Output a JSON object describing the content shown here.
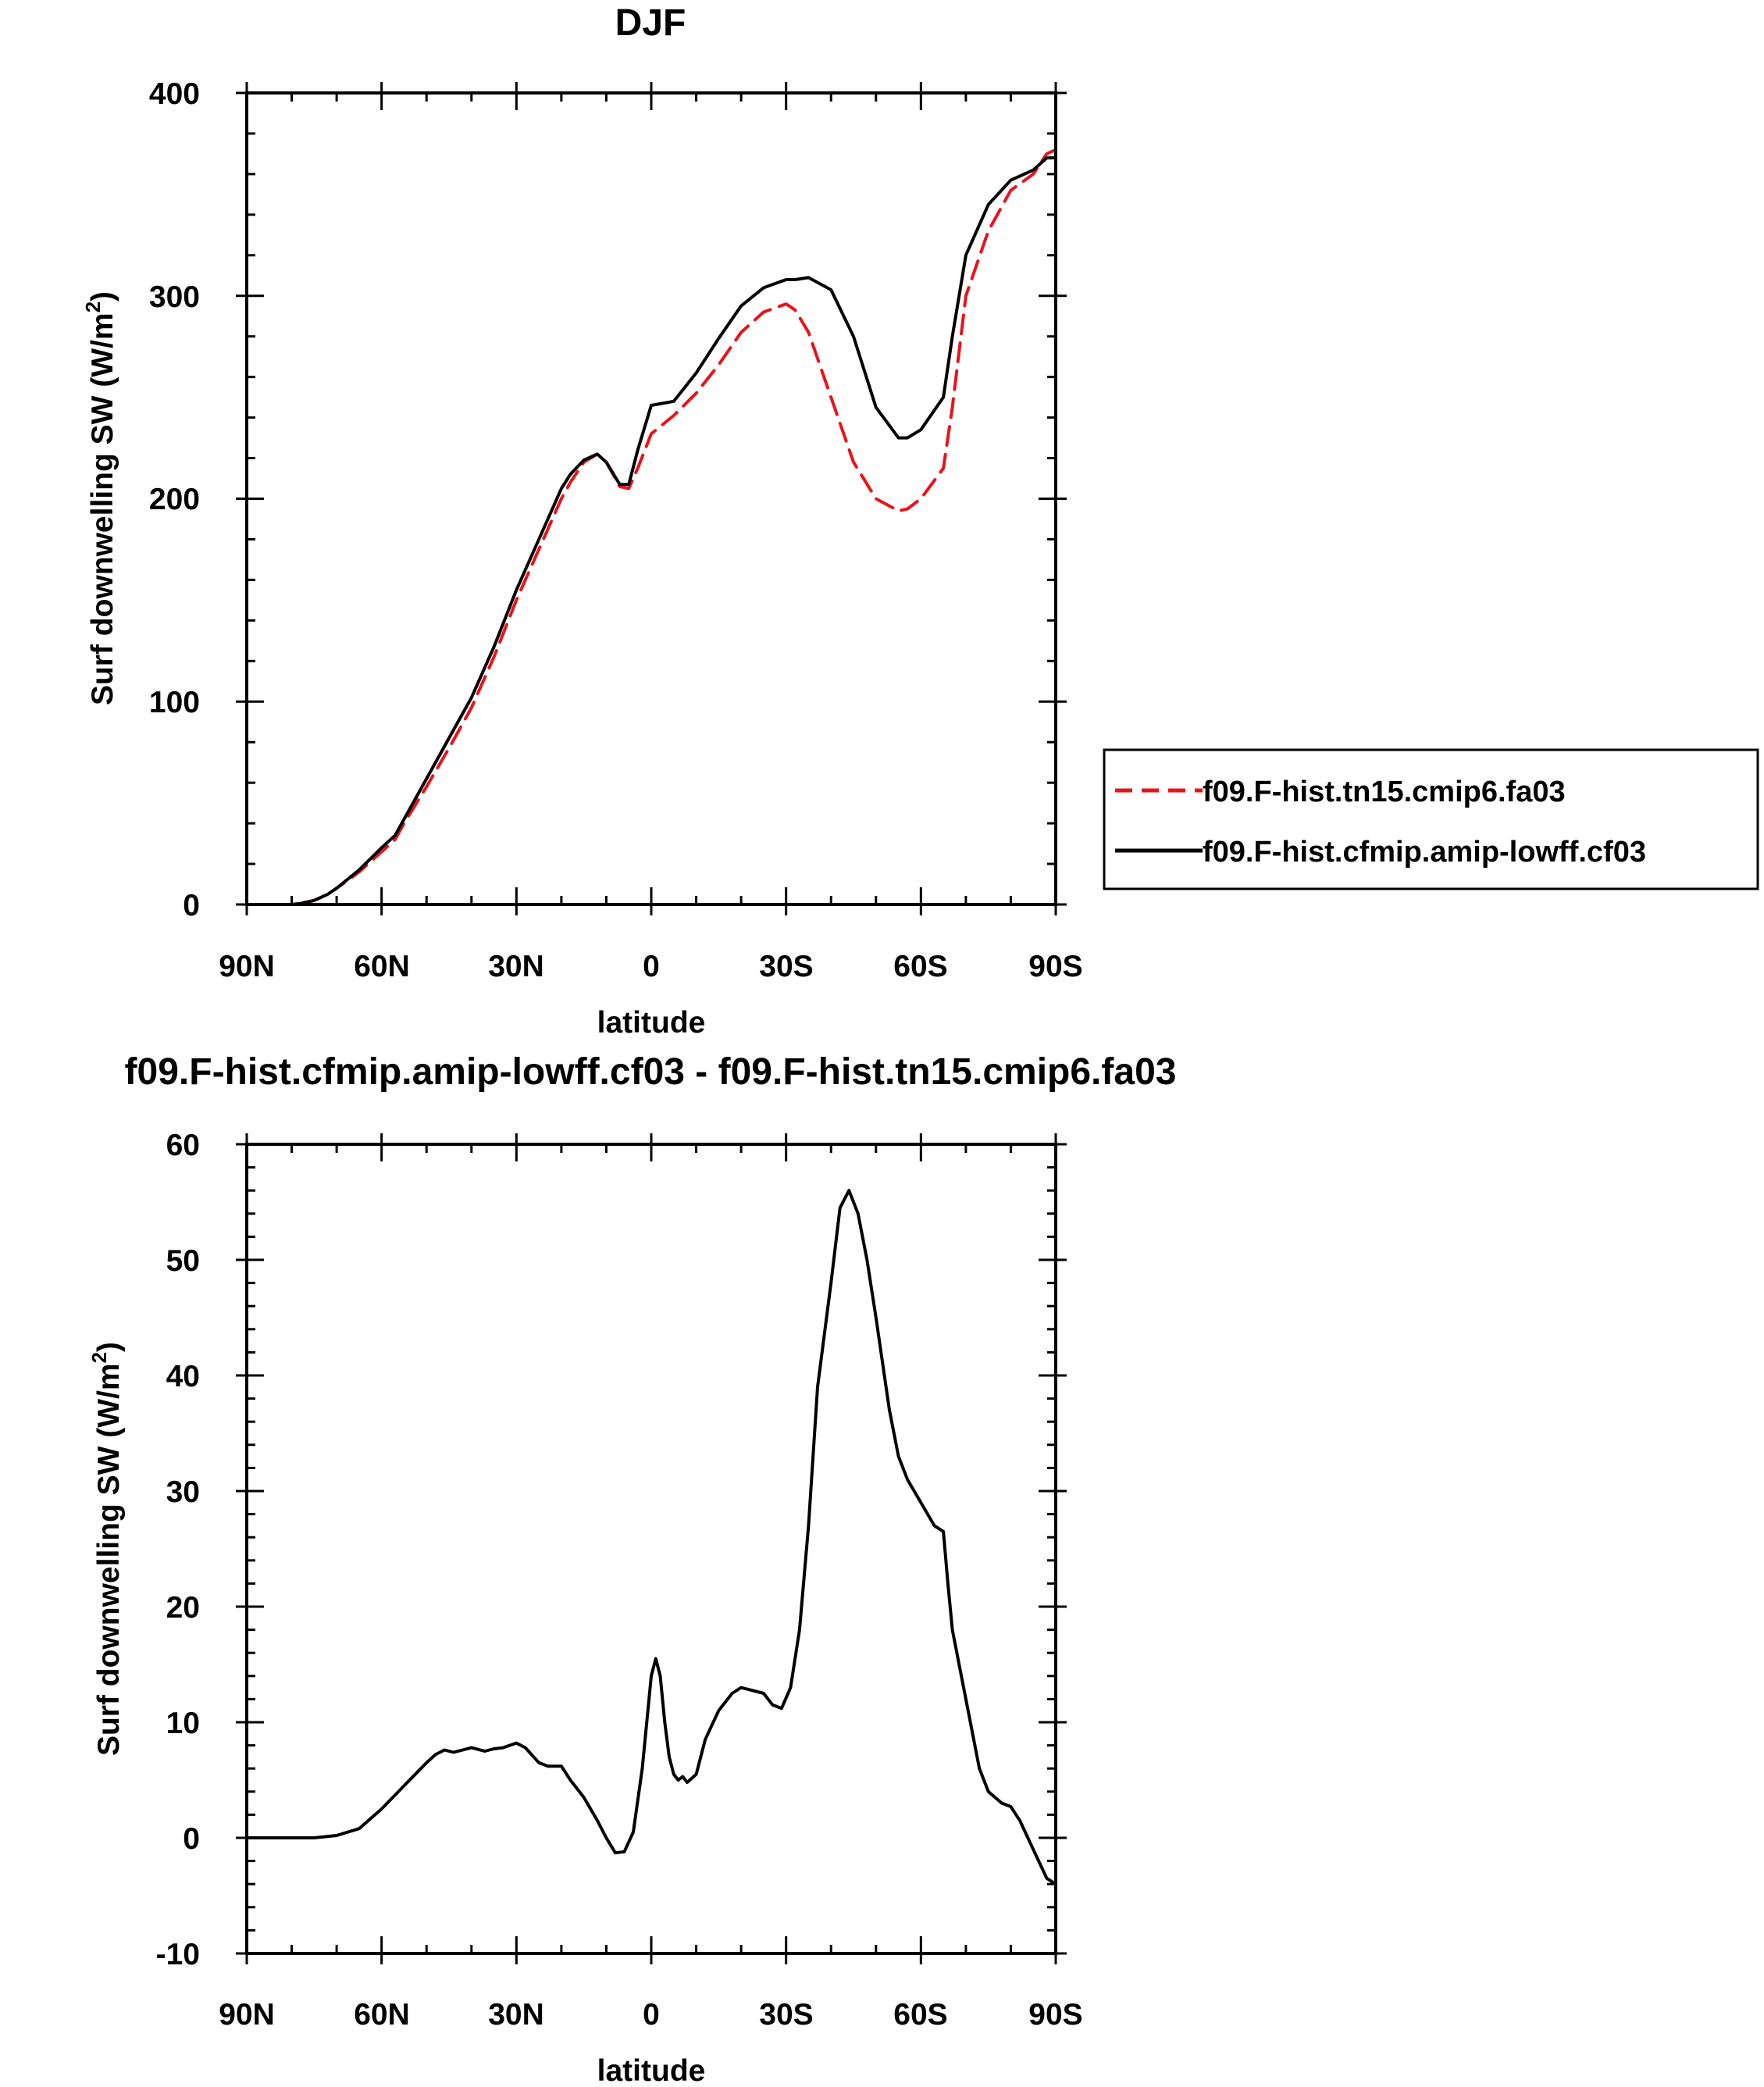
{
  "chart_data": [
    {
      "type": "line",
      "title": "DJF",
      "xlabel": "latitude",
      "ylabel": "Surf downwelling SW (W/m",
      "ylabel_sup": "2",
      "ylabel_close": ")",
      "xlim": [
        -90,
        90
      ],
      "ylim": [
        0,
        400
      ],
      "xticks": [
        -90,
        -60,
        -30,
        0,
        30,
        60,
        90
      ],
      "xtick_labels": [
        "90N",
        "60N",
        "30N",
        "0",
        "30S",
        "60S",
        "90S"
      ],
      "yticks": [
        0,
        100,
        200,
        300,
        400
      ],
      "ytick_labels": [
        "0",
        "100",
        "200",
        "300",
        "400"
      ],
      "grid": false,
      "legend": "right",
      "series": [
        {
          "name": "f09.F-hist.tn15.cmip6.fa03",
          "color": "#e8141b",
          "dash": "dashed",
          "x": [
            -90,
            -80,
            -78,
            -75,
            -72,
            -70,
            -65,
            -60,
            -57,
            -55,
            -50,
            -45,
            -40,
            -35,
            -30,
            -25,
            -20,
            -18,
            -15,
            -12,
            -10,
            -7,
            -5,
            -3,
            0,
            5,
            10,
            15,
            20,
            25,
            30,
            32,
            35,
            40,
            45,
            50,
            55,
            57,
            60,
            65,
            67,
            70,
            75,
            80,
            85,
            88,
            90
          ],
          "y": [
            0,
            0,
            0.5,
            2,
            5,
            8,
            16,
            26,
            32,
            40,
            58,
            77,
            97,
            122,
            150,
            175,
            200,
            208,
            218,
            222,
            218,
            206,
            205,
            215,
            232,
            241,
            252,
            266,
            282,
            292,
            296,
            293,
            282,
            250,
            218,
            200,
            194,
            195,
            200,
            215,
            245,
            300,
            332,
            352,
            360,
            370,
            372
          ]
        },
        {
          "name": "f09.F-hist.cfmip.amip-lowff.cf03",
          "color": "#000000",
          "dash": "solid",
          "x": [
            -90,
            -80,
            -78,
            -75,
            -72,
            -70,
            -65,
            -60,
            -57,
            -55,
            -50,
            -45,
            -40,
            -35,
            -30,
            -25,
            -20,
            -18,
            -15,
            -12,
            -10,
            -7,
            -5,
            -3,
            0,
            5,
            10,
            15,
            20,
            25,
            30,
            32,
            35,
            40,
            45,
            50,
            55,
            57,
            60,
            65,
            67,
            70,
            75,
            80,
            85,
            88,
            90
          ],
          "y": [
            0,
            0,
            0.5,
            2,
            5,
            8,
            17,
            28,
            34,
            42,
            62,
            82,
            102,
            127,
            155,
            180,
            205,
            212,
            219,
            222,
            218,
            207,
            207,
            224,
            246,
            248,
            262,
            279,
            295,
            304,
            308,
            308,
            309,
            303,
            280,
            245,
            230,
            230,
            234,
            250,
            280,
            320,
            345,
            357,
            362,
            368,
            368
          ]
        }
      ]
    },
    {
      "type": "line",
      "title": "f09.F-hist.cfmip.amip-lowff.cf03 - f09.F-hist.tn15.cmip6.fa03",
      "xlabel": "latitude",
      "ylabel": "Surf downwelling SW (W/m",
      "ylabel_sup": "2",
      "ylabel_close": ")",
      "xlim": [
        -90,
        90
      ],
      "ylim": [
        -10,
        60
      ],
      "xticks": [
        -90,
        -60,
        -30,
        0,
        30,
        60,
        90
      ],
      "xtick_labels": [
        "90N",
        "60N",
        "30N",
        "0",
        "30S",
        "60S",
        "90S"
      ],
      "yticks": [
        -10,
        0,
        10,
        20,
        30,
        40,
        50,
        60
      ],
      "ytick_labels": [
        "-10",
        "0",
        "10",
        "20",
        "30",
        "40",
        "50",
        "60"
      ],
      "grid": false,
      "series": [
        {
          "color": "#000000",
          "dash": "solid",
          "x": [
            -90,
            -75,
            -70,
            -65,
            -60,
            -55,
            -50,
            -48,
            -46,
            -44,
            -40,
            -37,
            -35,
            -33,
            -30,
            -28,
            -25,
            -23,
            -20,
            -18,
            -15,
            -12,
            -10,
            -8,
            -6,
            -4,
            -2,
            0,
            1,
            2,
            3,
            4,
            5,
            6,
            7,
            8,
            10,
            12,
            15,
            18,
            20,
            22,
            25,
            27,
            29,
            31,
            33,
            35,
            37,
            40,
            42,
            44,
            46,
            48,
            50,
            53,
            55,
            57,
            60,
            63,
            65,
            66,
            67,
            70,
            73,
            75,
            78,
            80,
            82,
            85,
            88,
            90
          ],
          "y": [
            0,
            0,
            0.2,
            0.8,
            2.5,
            4.5,
            6.5,
            7.2,
            7.6,
            7.4,
            7.8,
            7.5,
            7.7,
            7.8,
            8.2,
            7.8,
            6.5,
            6.2,
            6.2,
            5,
            3.5,
            1.5,
            0,
            -1.3,
            -1.2,
            0.5,
            6,
            14,
            15.5,
            14,
            10,
            7,
            5.5,
            5,
            5.3,
            4.8,
            5.5,
            8.5,
            11,
            12.5,
            13,
            12.8,
            12.5,
            11.5,
            11.2,
            13,
            18,
            27,
            39,
            48,
            54.5,
            56,
            54,
            50,
            45,
            37,
            33,
            31,
            29,
            27,
            26.5,
            22,
            18,
            12,
            6,
            4,
            3,
            2.7,
            1.5,
            -1,
            -3.5,
            -4
          ]
        }
      ]
    }
  ]
}
